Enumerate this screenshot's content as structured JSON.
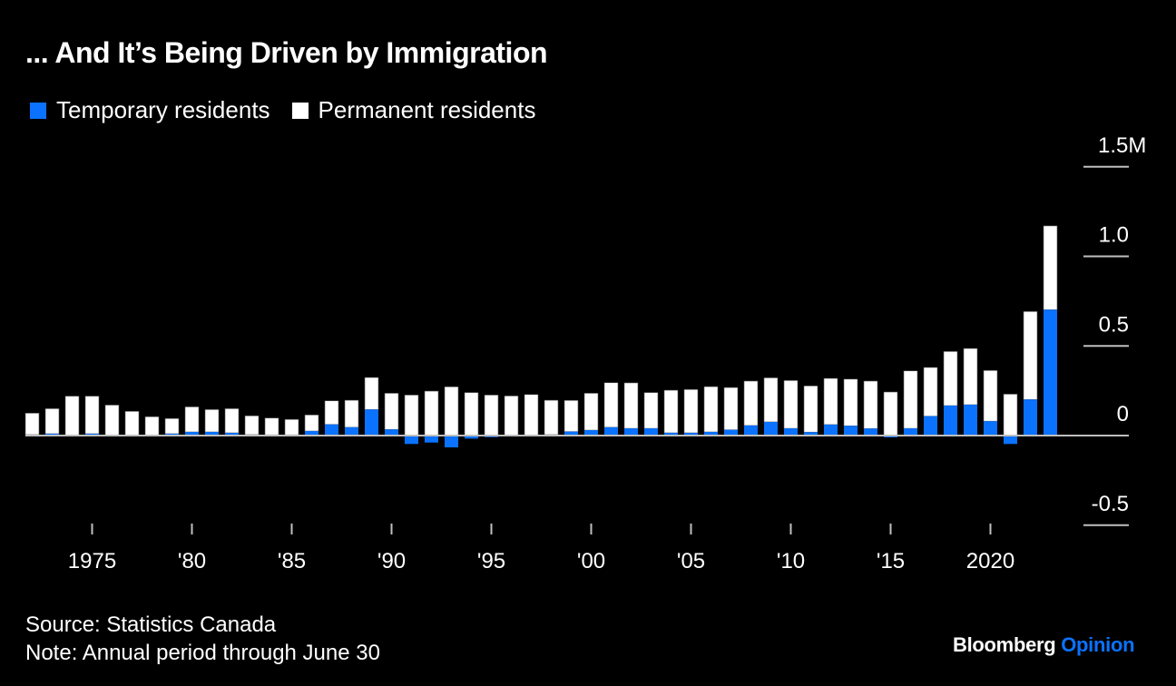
{
  "title": "... And It’s Being Driven by Immigration",
  "legend": [
    {
      "label": "Temporary residents",
      "color": "#0a72ff"
    },
    {
      "label": "Permanent residents",
      "color": "#ffffff"
    }
  ],
  "footer": {
    "source": "Source: Statistics Canada",
    "note": "Note: Annual period through June 30"
  },
  "brand": {
    "name": "Bloomberg",
    "section": "Opinion",
    "section_color": "#0a72ff"
  },
  "chart_data": {
    "type": "bar",
    "stacked": true,
    "title": "... And It’s Being Driven by Immigration",
    "xlabel": "",
    "ylabel": "",
    "ylim": [
      -0.5,
      1.5
    ],
    "y_unit": "M",
    "y_ticks": [
      {
        "value": 1.5,
        "label": "1.5M"
      },
      {
        "value": 1.0,
        "label": "1.0"
      },
      {
        "value": 0.5,
        "label": "0.5"
      },
      {
        "value": 0,
        "label": "0"
      },
      {
        "value": -0.5,
        "label": "-0.5"
      }
    ],
    "y_axis_position": "right",
    "x_ticks": [
      {
        "year": 1975,
        "label": "1975"
      },
      {
        "year": 1980,
        "label": "'80"
      },
      {
        "year": 1985,
        "label": "'85"
      },
      {
        "year": 1990,
        "label": "'90"
      },
      {
        "year": 1995,
        "label": "'95"
      },
      {
        "year": 2000,
        "label": "'00"
      },
      {
        "year": 2005,
        "label": "'05"
      },
      {
        "year": 2010,
        "label": "'10"
      },
      {
        "year": 2015,
        "label": "'15"
      },
      {
        "year": 2020,
        "label": "2020"
      }
    ],
    "legend_position": "top-left",
    "grid": true,
    "categories": [
      1972,
      1973,
      1974,
      1975,
      1976,
      1977,
      1978,
      1979,
      1980,
      1981,
      1982,
      1983,
      1984,
      1985,
      1986,
      1987,
      1988,
      1989,
      1990,
      1991,
      1992,
      1993,
      1994,
      1995,
      1996,
      1997,
      1998,
      1999,
      2000,
      2001,
      2002,
      2003,
      2004,
      2005,
      2006,
      2007,
      2008,
      2009,
      2010,
      2011,
      2012,
      2013,
      2014,
      2015,
      2016,
      2017,
      2018,
      2019,
      2020,
      2021,
      2022,
      2023
    ],
    "series": [
      {
        "name": "Temporary residents",
        "color": "#0a72ff",
        "values": [
          0.005,
          0.01,
          0.002,
          0.01,
          0.003,
          0.002,
          0.003,
          0.01,
          0.02,
          0.02,
          0.015,
          0.005,
          0.004,
          0.004,
          0.025,
          0.062,
          0.046,
          0.145,
          0.034,
          -0.047,
          -0.039,
          -0.066,
          -0.017,
          -0.009,
          0.0,
          0.001,
          0.005,
          0.022,
          0.03,
          0.046,
          0.04,
          0.04,
          0.015,
          0.015,
          0.02,
          0.032,
          0.056,
          0.076,
          0.04,
          0.019,
          0.061,
          0.054,
          0.039,
          -0.01,
          0.04,
          0.108,
          0.167,
          0.172,
          0.08,
          -0.047,
          0.201,
          0.702
        ]
      },
      {
        "name": "Permanent residents",
        "color": "#ffffff",
        "values": [
          0.12,
          0.14,
          0.218,
          0.21,
          0.167,
          0.133,
          0.102,
          0.085,
          0.14,
          0.125,
          0.135,
          0.105,
          0.094,
          0.086,
          0.09,
          0.132,
          0.151,
          0.179,
          0.202,
          0.226,
          0.248,
          0.272,
          0.24,
          0.226,
          0.221,
          0.228,
          0.192,
          0.174,
          0.206,
          0.249,
          0.254,
          0.2,
          0.238,
          0.242,
          0.253,
          0.236,
          0.248,
          0.246,
          0.267,
          0.258,
          0.258,
          0.261,
          0.265,
          0.243,
          0.321,
          0.272,
          0.302,
          0.314,
          0.283,
          0.231,
          0.491,
          0.468
        ]
      }
    ]
  }
}
